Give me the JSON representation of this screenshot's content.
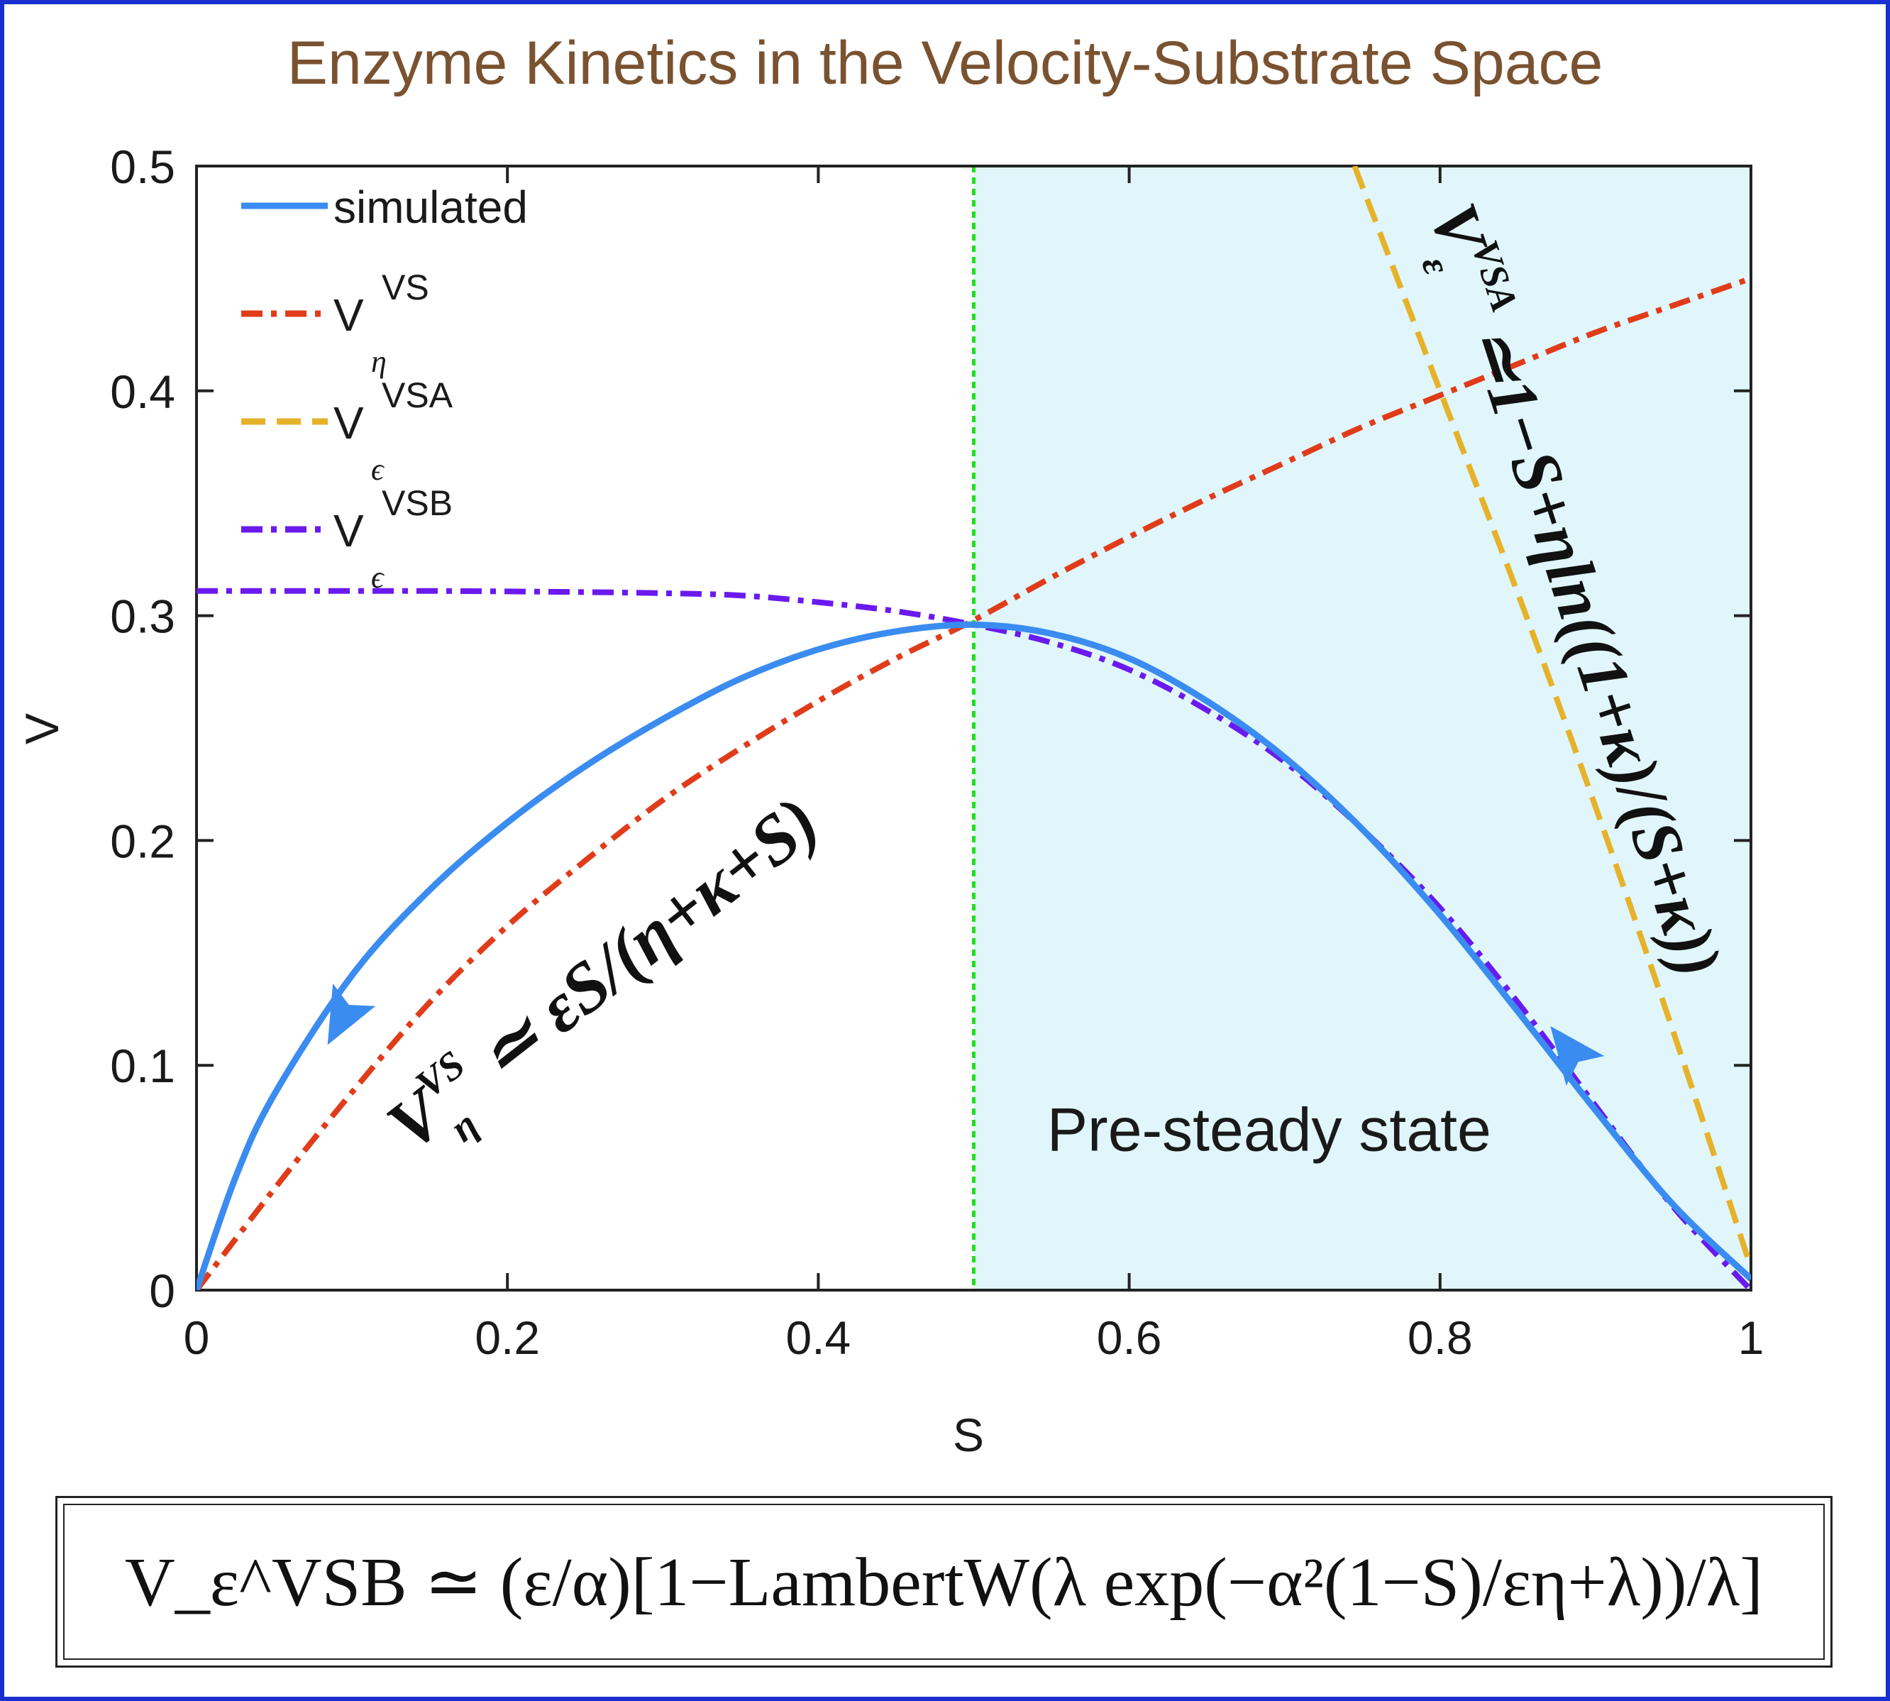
{
  "chart_data": {
    "type": "line",
    "title": "Enzyme Kinetics in the Velocity-Substrate Space",
    "xlabel": "S",
    "ylabel": "V",
    "xlim": [
      0,
      1
    ],
    "ylim": [
      0,
      0.5
    ],
    "xticks": [
      0,
      0.2,
      0.4,
      0.6,
      0.8,
      1
    ],
    "xtick_labels": [
      "0",
      "0.2",
      "0.4",
      "0.6",
      "0.8",
      "1"
    ],
    "yticks": [
      0,
      0.1,
      0.2,
      0.3,
      0.4,
      0.5
    ],
    "ytick_labels": [
      "0",
      "0.1",
      "0.2",
      "0.3",
      "0.4",
      "0.5"
    ],
    "grid": false,
    "legend_position": "top-left",
    "shaded_region": {
      "x": [
        0.5,
        1
      ],
      "color": "#e0f6fb",
      "label": "Pre-steady state"
    },
    "vertical_line": {
      "x": 0.5,
      "color": "#22dd22",
      "style": "dotted"
    },
    "series": [
      {
        "name": "simulated",
        "legend_main": "simulated",
        "legend_sub": "",
        "legend_sup": "",
        "color": "#3a8cf0",
        "style": "solid",
        "x": [
          0,
          0.025,
          0.05,
          0.1,
          0.15,
          0.2,
          0.25,
          0.3,
          0.35,
          0.4,
          0.45,
          0.5,
          0.55,
          0.6,
          0.65,
          0.7,
          0.75,
          0.8,
          0.85,
          0.9,
          0.95,
          1
        ],
        "y": [
          0,
          0.05,
          0.087,
          0.14,
          0.178,
          0.208,
          0.233,
          0.254,
          0.272,
          0.285,
          0.293,
          0.296,
          0.292,
          0.281,
          0.262,
          0.237,
          0.205,
          0.167,
          0.124,
          0.08,
          0.038,
          0.005
        ]
      },
      {
        "name": "V_eta^VS",
        "legend_main": "V",
        "legend_sub": "η",
        "legend_sup": "VS",
        "color": "#e03c1a",
        "style": "dashdot",
        "x": [
          0,
          0.05,
          0.1,
          0.15,
          0.2,
          0.25,
          0.3,
          0.35,
          0.4,
          0.45,
          0.5,
          0.55,
          0.6,
          0.65,
          0.7,
          0.75,
          0.8,
          0.85,
          0.9,
          0.95,
          1
        ],
        "y": [
          0,
          0.045,
          0.088,
          0.128,
          0.162,
          0.191,
          0.218,
          0.241,
          0.262,
          0.281,
          0.298,
          0.317,
          0.335,
          0.352,
          0.368,
          0.384,
          0.398,
          0.412,
          0.426,
          0.438,
          0.45
        ]
      },
      {
        "name": "V_eps^VSA",
        "legend_main": "V",
        "legend_sub": "ϵ",
        "legend_sup": "VSA",
        "color": "#e6b22a",
        "style": "dashed",
        "x": [
          0.745,
          0.8,
          0.85,
          0.9,
          0.95,
          1
        ],
        "y": [
          0.5,
          0.4,
          0.31,
          0.215,
          0.115,
          0.01
        ]
      },
      {
        "name": "V_eps^VSB",
        "legend_main": "V",
        "legend_sub": "ϵ",
        "legend_sup": "VSB",
        "color": "#6a1aee",
        "style": "dashdot",
        "x": [
          0,
          0.05,
          0.1,
          0.15,
          0.2,
          0.25,
          0.3,
          0.35,
          0.4,
          0.45,
          0.5,
          0.55,
          0.6,
          0.65,
          0.7,
          0.75,
          0.8,
          0.85,
          0.9,
          0.95,
          1
        ],
        "y": [
          0.311,
          0.311,
          0.311,
          0.311,
          0.3108,
          0.3105,
          0.31,
          0.309,
          0.306,
          0.302,
          0.296,
          0.288,
          0.276,
          0.258,
          0.235,
          0.205,
          0.17,
          0.128,
          0.082,
          0.037,
          0
        ]
      }
    ],
    "annotations": [
      {
        "id": "vs",
        "text_main": "V",
        "text_sup": "VS",
        "text_sub": "η",
        "text_expr": "≃ εS/(η+κ+S)"
      },
      {
        "id": "vsa",
        "text_main": "V",
        "text_sup": "VSA",
        "text_sub": "ε",
        "text_expr": "≃1−S+ηln((1+κ)/(S+κ))"
      }
    ],
    "arrows": [
      {
        "x": 0.095,
        "y": 0.123,
        "direction": "down-left",
        "color": "#3a8cf0"
      },
      {
        "x": 0.885,
        "y": 0.105,
        "direction": "up-left",
        "color": "#3a8cf0"
      }
    ]
  },
  "formula": {
    "text": "V_ε^VSB ≃ (ε/α)[1−LambertW(λ exp(−α²(1−S)/εη+λ))/λ]"
  }
}
